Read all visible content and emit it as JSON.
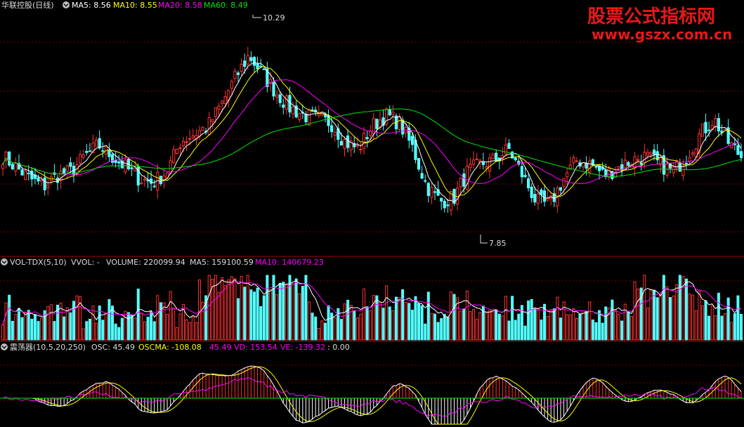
{
  "main_header": {
    "title": "华联控股(日线)",
    "ma5": "MA5: 8.56",
    "ma10": "MA10: 8.55",
    "ma20": "MA20: 8.58",
    "ma60": "MA60: 8.49"
  },
  "vol_header": {
    "name": "VOL-TDX(5,10)",
    "vvol": "VVOL: -",
    "volume": "VOLUME: 220099.94",
    "ma5": "MA5: 159100.59",
    "ma10": "MA10: 140679.23"
  },
  "osc_header": {
    "name": "震荡器(10,5,20,250)",
    "osc": "OSC: 45.49",
    "oscma": "OSCMA: -108.08",
    "v1": "45.49",
    "vd": "VD: 153.54",
    "ve": "VE: -139.32",
    "tail": ": 0.00"
  },
  "annotations": {
    "high": "10.29",
    "low": "7.85"
  },
  "watermark": {
    "line1": "股票公式指标网",
    "line2": "www.gszx.com.cn"
  },
  "colors": {
    "up": "#ff3232",
    "down": "#54ffff",
    "ma5": "#ffffff",
    "ma10": "#ffff00",
    "ma20": "#ff00ff",
    "ma60": "#00e600",
    "grid": "#7a0000"
  },
  "chart_data": {
    "type": "candlestick",
    "price_range": [
      7.5,
      10.5
    ],
    "series": [
      {
        "name": "MA5",
        "values": [
          8.56
        ]
      },
      {
        "name": "MA10",
        "values": [
          8.55
        ]
      },
      {
        "name": "MA20",
        "values": [
          8.58
        ]
      },
      {
        "name": "MA60",
        "values": [
          8.49
        ]
      }
    ],
    "close_anchors": [
      8.6,
      8.45,
      8.3,
      8.2,
      8.35,
      8.4,
      8.6,
      8.75,
      8.6,
      8.45,
      8.3,
      8.25,
      8.4,
      8.8,
      8.9,
      9.0,
      9.3,
      9.65,
      9.95,
      9.7,
      9.45,
      9.25,
      9.15,
      9.1,
      9.05,
      8.8,
      8.7,
      9.0,
      9.15,
      9.05,
      8.7,
      8.2,
      8.0,
      8.05,
      8.4,
      8.5,
      8.55,
      8.7,
      8.35,
      8.0,
      7.95,
      8.3,
      8.55,
      8.5,
      8.35,
      8.45,
      8.55,
      8.6,
      8.5,
      8.4,
      8.6,
      8.9,
      9.1,
      8.8,
      8.6
    ],
    "high_value": 10.29,
    "low_value": 7.85,
    "volume": {
      "volume": 220099.94,
      "ma5": 159100.59,
      "ma10": 140679.23
    },
    "oscillator": {
      "osc": 45.49,
      "oscma": -108.08,
      "vd": 153.54,
      "ve": -139.32
    }
  }
}
